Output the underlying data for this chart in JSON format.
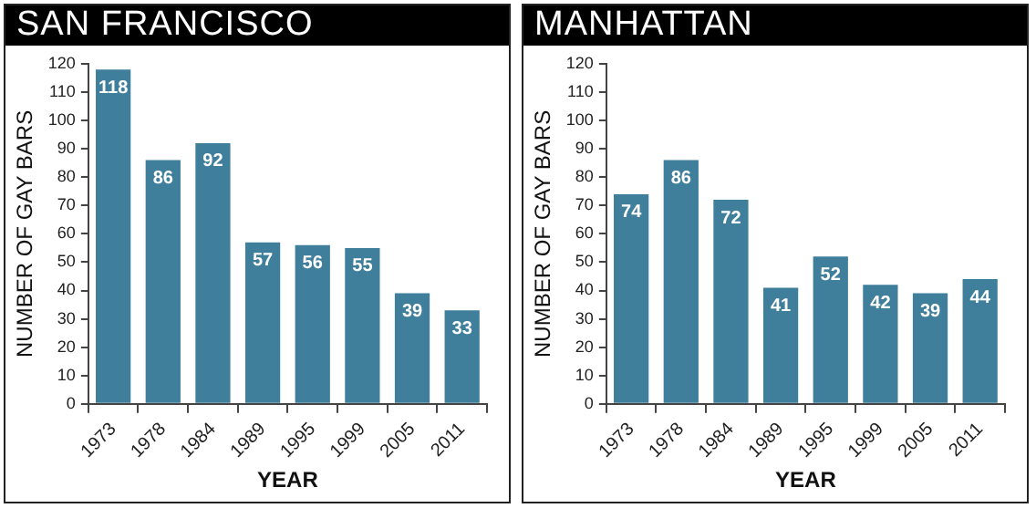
{
  "chart_data": [
    {
      "type": "bar",
      "title": "SAN FRANCISCO",
      "xlabel": "YEAR",
      "ylabel": "NUMBER OF GAY BARS",
      "categories": [
        "1973",
        "1978",
        "1984",
        "1989",
        "1995",
        "1999",
        "2005",
        "2011"
      ],
      "values": [
        118,
        86,
        92,
        57,
        56,
        55,
        39,
        33
      ],
      "color": "#3f7f9b",
      "ylim": [
        0,
        120
      ],
      "yticks": [
        0,
        10,
        20,
        30,
        40,
        50,
        60,
        70,
        80,
        90,
        100,
        110,
        120
      ],
      "grid": false,
      "data_labels": true
    },
    {
      "type": "bar",
      "title": "MANHATTAN",
      "xlabel": "YEAR",
      "ylabel": "NUMBER OF GAY BARS",
      "categories": [
        "1973",
        "1978",
        "1984",
        "1989",
        "1995",
        "1999",
        "2005",
        "2011"
      ],
      "values": [
        74,
        86,
        72,
        41,
        52,
        42,
        39,
        44
      ],
      "color": "#3f7f9b",
      "ylim": [
        0,
        120
      ],
      "yticks": [
        0,
        10,
        20,
        30,
        40,
        50,
        60,
        70,
        80,
        90,
        100,
        110,
        120
      ],
      "grid": false,
      "data_labels": true
    }
  ]
}
